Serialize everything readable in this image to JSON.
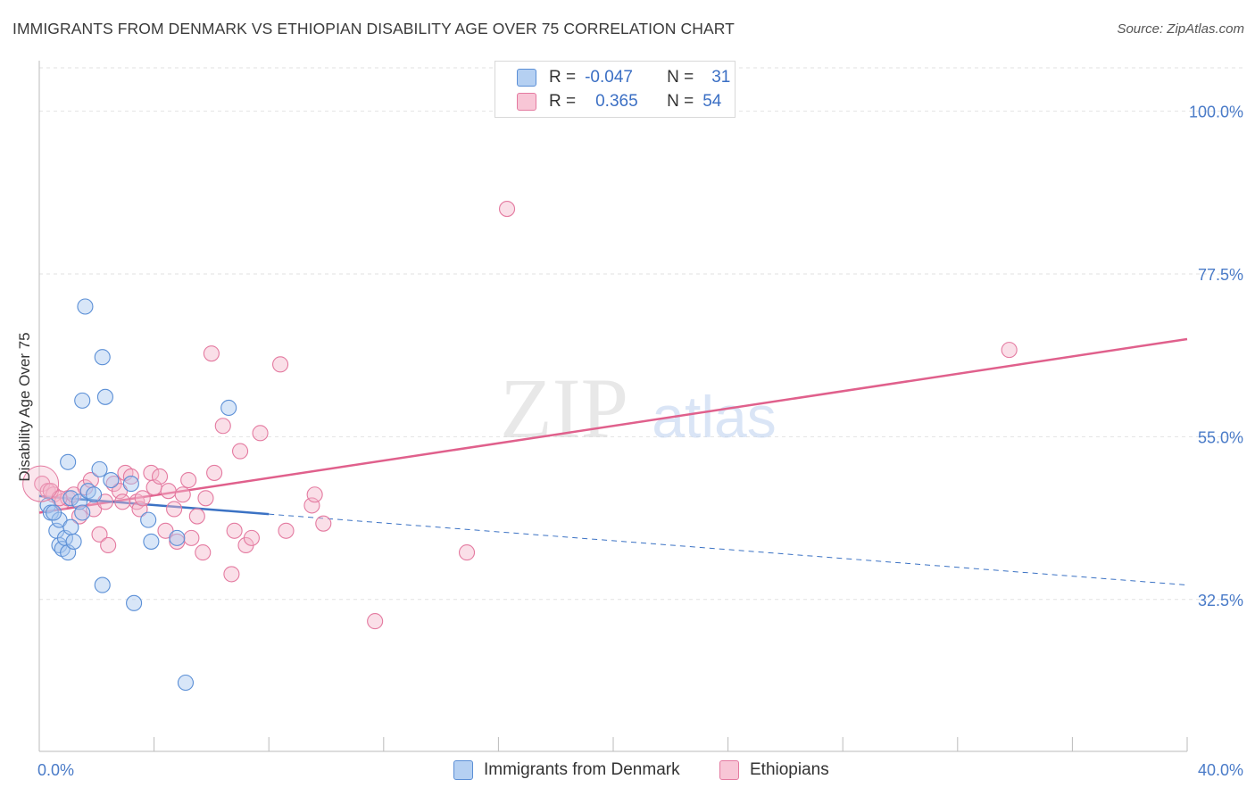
{
  "title": "IMMIGRANTS FROM DENMARK VS ETHIOPIAN DISABILITY AGE OVER 75 CORRELATION CHART",
  "source": "Source: ZipAtlas.com",
  "watermark": {
    "zip": "ZIP",
    "atlas": "atlas"
  },
  "legend": {
    "rows": [
      {
        "r_label": "R =",
        "r_value": "-0.047",
        "n_label": "N =",
        "n_value": "31"
      },
      {
        "r_label": "R =",
        "r_value": "0.365",
        "n_label": "N =",
        "n_value": "54"
      }
    ]
  },
  "colors": {
    "blue_fill": "#a9c8ef",
    "blue_stroke": "#5b8fd6",
    "blue_line": "#3b72c4",
    "pink_fill": "#f4b8cc",
    "pink_stroke": "#e47aa0",
    "pink_line": "#e0608c",
    "tick_label": "#4a7bc8",
    "grid": "#e2e2e2"
  },
  "chart_data": {
    "type": "scatter",
    "title": "IMMIGRANTS FROM DENMARK VS ETHIOPIAN DISABILITY AGE OVER 75 CORRELATION CHART",
    "xlabel": "",
    "ylabel": "Disability Age Over 75",
    "xlim": [
      0,
      40
    ],
    "ylim": [
      11.5,
      106
    ],
    "x_tick_labels": [
      "0.0%",
      "40.0%"
    ],
    "y_ticks": [
      32.5,
      55.0,
      77.5,
      100.0
    ],
    "y_tick_labels": [
      "32.5%",
      "55.0%",
      "77.5%",
      "100.0%"
    ],
    "series": [
      {
        "name": "Immigrants from Denmark",
        "color": "blue",
        "points": [
          [
            0.3,
            45.5
          ],
          [
            0.4,
            44.5
          ],
          [
            0.6,
            42.0
          ],
          [
            0.7,
            43.5
          ],
          [
            0.7,
            40.0
          ],
          [
            0.8,
            39.5
          ],
          [
            0.9,
            41.0
          ],
          [
            1.0,
            39.0
          ],
          [
            1.0,
            51.5
          ],
          [
            1.1,
            46.5
          ],
          [
            1.1,
            42.5
          ],
          [
            1.2,
            40.5
          ],
          [
            1.4,
            46.0
          ],
          [
            1.5,
            44.5
          ],
          [
            1.5,
            60.0
          ],
          [
            1.6,
            73.0
          ],
          [
            1.7,
            47.5
          ],
          [
            2.1,
            50.5
          ],
          [
            2.2,
            34.5
          ],
          [
            2.2,
            66.0
          ],
          [
            2.3,
            60.5
          ],
          [
            2.5,
            49.0
          ],
          [
            3.2,
            48.5
          ],
          [
            3.3,
            32.0
          ],
          [
            3.8,
            43.5
          ],
          [
            3.9,
            40.5
          ],
          [
            4.8,
            41.0
          ],
          [
            5.1,
            21.0
          ],
          [
            6.6,
            59.0
          ],
          [
            0.5,
            44.5
          ],
          [
            1.9,
            47.0
          ]
        ],
        "trend": {
          "x": [
            0,
            8
          ],
          "y": [
            46.8,
            44.3
          ],
          "dashed_to_x": 40,
          "dashed_to_y": 34.5
        }
      },
      {
        "name": "Ethiopians",
        "color": "pink",
        "points": [
          [
            0.1,
            48.5
          ],
          [
            0.3,
            47.5
          ],
          [
            0.5,
            47.0
          ],
          [
            0.8,
            46.0
          ],
          [
            1.0,
            46.5
          ],
          [
            1.2,
            47.0
          ],
          [
            1.6,
            48.0
          ],
          [
            1.8,
            49.0
          ],
          [
            1.9,
            45.0
          ],
          [
            2.1,
            41.5
          ],
          [
            2.3,
            46.0
          ],
          [
            2.4,
            40.0
          ],
          [
            2.6,
            48.5
          ],
          [
            2.8,
            47.5
          ],
          [
            3.0,
            50.0
          ],
          [
            3.2,
            49.5
          ],
          [
            3.4,
            46.0
          ],
          [
            3.5,
            45.0
          ],
          [
            3.6,
            46.5
          ],
          [
            3.9,
            50.0
          ],
          [
            4.0,
            48.0
          ],
          [
            4.2,
            49.5
          ],
          [
            4.4,
            42.0
          ],
          [
            4.5,
            47.5
          ],
          [
            4.7,
            45.0
          ],
          [
            4.8,
            40.5
          ],
          [
            5.0,
            47.0
          ],
          [
            5.2,
            49.0
          ],
          [
            5.3,
            41.0
          ],
          [
            5.5,
            44.0
          ],
          [
            5.7,
            39.0
          ],
          [
            5.8,
            46.5
          ],
          [
            6.0,
            66.5
          ],
          [
            6.1,
            50.0
          ],
          [
            6.4,
            56.5
          ],
          [
            6.7,
            36.0
          ],
          [
            6.8,
            42.0
          ],
          [
            7.0,
            53.0
          ],
          [
            7.2,
            40.0
          ],
          [
            7.4,
            41.0
          ],
          [
            7.7,
            55.5
          ],
          [
            8.4,
            65.0
          ],
          [
            8.6,
            42.0
          ],
          [
            9.5,
            45.5
          ],
          [
            9.6,
            47.0
          ],
          [
            9.9,
            43.0
          ],
          [
            11.7,
            29.5
          ],
          [
            14.9,
            39.0
          ],
          [
            16.3,
            86.5
          ],
          [
            33.8,
            67.0
          ],
          [
            0.4,
            47.5
          ],
          [
            0.7,
            46.5
          ],
          [
            1.4,
            44.0
          ],
          [
            2.9,
            46.0
          ]
        ],
        "trend": {
          "x": [
            0,
            40
          ],
          "y": [
            44.5,
            68.5
          ]
        }
      }
    ]
  },
  "bottom_legend": {
    "items": [
      {
        "label": "Immigrants from Denmark"
      },
      {
        "label": "Ethiopians"
      }
    ]
  }
}
